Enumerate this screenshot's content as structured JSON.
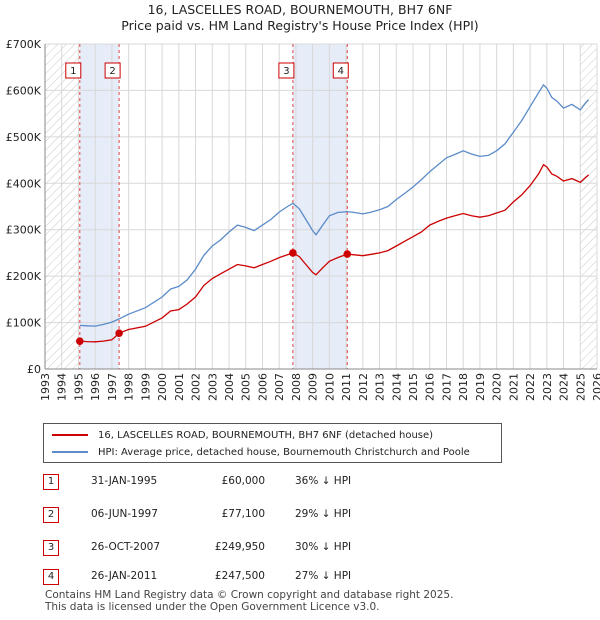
{
  "title_line1": "16, LASCELLES ROAD, BOURNEMOUTH, BH7 6NF",
  "title_line2": "Price paid vs. HM Land Registry's House Price Index (HPI)",
  "colors": {
    "price": "#cc0000",
    "hpi": "#5b8bc9",
    "shade": "#e6ecf8",
    "grid": "#d8d8d8"
  },
  "chart_data": {
    "type": "line",
    "xlim": [
      1993,
      2026
    ],
    "ylim": [
      0,
      700000
    ],
    "x_ticks": [
      1993,
      1994,
      1995,
      1996,
      1997,
      1998,
      1999,
      2000,
      2001,
      2002,
      2003,
      2004,
      2005,
      2006,
      2007,
      2008,
      2009,
      2010,
      2011,
      2012,
      2013,
      2014,
      2015,
      2016,
      2017,
      2018,
      2019,
      2020,
      2021,
      2022,
      2023,
      2024,
      2025,
      2026
    ],
    "y_ticks": [
      {
        "value": 0,
        "label": "£0"
      },
      {
        "value": 100000,
        "label": "£100K"
      },
      {
        "value": 200000,
        "label": "£200K"
      },
      {
        "value": 300000,
        "label": "£300K"
      },
      {
        "value": 400000,
        "label": "£400K"
      },
      {
        "value": 500000,
        "label": "£500K"
      },
      {
        "value": 600000,
        "label": "£600K"
      },
      {
        "value": 700000,
        "label": "£700K"
      }
    ],
    "hatched_before": 1995.0,
    "hatched_after": 2025.0,
    "shaded_ranges": [
      [
        1995.08,
        1997.43
      ],
      [
        2007.82,
        2011.07
      ]
    ],
    "series": [
      {
        "name": "16, LASCELLES ROAD, BOURNEMOUTH, BH7 6NF (detached house)",
        "color": "#cc0000",
        "points": [
          [
            1995.08,
            60000
          ],
          [
            1995.5,
            59000
          ],
          [
            1996.0,
            58500
          ],
          [
            1996.5,
            60000
          ],
          [
            1997.0,
            63000
          ],
          [
            1997.43,
            77100
          ],
          [
            1998.0,
            85000
          ],
          [
            1999.0,
            92000
          ],
          [
            2000.0,
            110000
          ],
          [
            2000.5,
            125000
          ],
          [
            2001.0,
            128000
          ],
          [
            2001.5,
            140000
          ],
          [
            2002.0,
            155000
          ],
          [
            2002.5,
            180000
          ],
          [
            2003.0,
            195000
          ],
          [
            2003.5,
            205000
          ],
          [
            2004.0,
            215000
          ],
          [
            2004.5,
            225000
          ],
          [
            2005.0,
            222000
          ],
          [
            2005.5,
            218000
          ],
          [
            2006.0,
            225000
          ],
          [
            2006.5,
            232000
          ],
          [
            2007.0,
            240000
          ],
          [
            2007.5,
            246000
          ],
          [
            2007.82,
            249950
          ],
          [
            2008.2,
            242000
          ],
          [
            2008.6,
            225000
          ],
          [
            2009.0,
            208000
          ],
          [
            2009.2,
            203000
          ],
          [
            2009.6,
            218000
          ],
          [
            2010.0,
            232000
          ],
          [
            2010.5,
            240000
          ],
          [
            2011.07,
            247500
          ],
          [
            2011.5,
            246000
          ],
          [
            2012.0,
            244000
          ],
          [
            2012.5,
            247000
          ],
          [
            2013.0,
            250000
          ],
          [
            2013.5,
            255000
          ],
          [
            2014.0,
            265000
          ],
          [
            2014.5,
            275000
          ],
          [
            2015.0,
            285000
          ],
          [
            2015.5,
            295000
          ],
          [
            2016.0,
            310000
          ],
          [
            2016.5,
            318000
          ],
          [
            2017.0,
            325000
          ],
          [
            2017.5,
            330000
          ],
          [
            2018.0,
            335000
          ],
          [
            2018.5,
            330000
          ],
          [
            2019.0,
            327000
          ],
          [
            2019.5,
            330000
          ],
          [
            2020.0,
            336000
          ],
          [
            2020.5,
            342000
          ],
          [
            2021.0,
            360000
          ],
          [
            2021.5,
            375000
          ],
          [
            2022.0,
            395000
          ],
          [
            2022.5,
            420000
          ],
          [
            2022.8,
            440000
          ],
          [
            2023.0,
            435000
          ],
          [
            2023.3,
            420000
          ],
          [
            2023.6,
            415000
          ],
          [
            2024.0,
            405000
          ],
          [
            2024.5,
            410000
          ],
          [
            2025.0,
            402000
          ],
          [
            2025.3,
            412000
          ],
          [
            2025.5,
            418000
          ]
        ]
      },
      {
        "name": "HPI: Average price, detached house, Bournemouth Christchurch and Poole",
        "color": "#5b8bc9",
        "points": [
          [
            1995.08,
            94000
          ],
          [
            1995.5,
            93000
          ],
          [
            1996.0,
            92500
          ],
          [
            1996.5,
            96000
          ],
          [
            1997.0,
            101000
          ],
          [
            1997.43,
            108000
          ],
          [
            1998.0,
            118000
          ],
          [
            1999.0,
            132000
          ],
          [
            2000.0,
            155000
          ],
          [
            2000.5,
            172000
          ],
          [
            2001.0,
            178000
          ],
          [
            2001.5,
            192000
          ],
          [
            2002.0,
            215000
          ],
          [
            2002.5,
            245000
          ],
          [
            2003.0,
            265000
          ],
          [
            2003.5,
            278000
          ],
          [
            2004.0,
            295000
          ],
          [
            2004.5,
            310000
          ],
          [
            2005.0,
            305000
          ],
          [
            2005.5,
            298000
          ],
          [
            2006.0,
            310000
          ],
          [
            2006.5,
            322000
          ],
          [
            2007.0,
            338000
          ],
          [
            2007.5,
            350000
          ],
          [
            2007.82,
            357000
          ],
          [
            2008.2,
            345000
          ],
          [
            2008.6,
            322000
          ],
          [
            2009.0,
            298000
          ],
          [
            2009.2,
            289000
          ],
          [
            2009.6,
            310000
          ],
          [
            2010.0,
            330000
          ],
          [
            2010.5,
            337000
          ],
          [
            2011.07,
            339000
          ],
          [
            2011.5,
            337000
          ],
          [
            2012.0,
            334000
          ],
          [
            2012.5,
            338000
          ],
          [
            2013.0,
            343000
          ],
          [
            2013.5,
            350000
          ],
          [
            2014.0,
            365000
          ],
          [
            2014.5,
            378000
          ],
          [
            2015.0,
            392000
          ],
          [
            2015.5,
            408000
          ],
          [
            2016.0,
            425000
          ],
          [
            2016.5,
            440000
          ],
          [
            2017.0,
            455000
          ],
          [
            2017.5,
            462000
          ],
          [
            2018.0,
            470000
          ],
          [
            2018.5,
            463000
          ],
          [
            2019.0,
            458000
          ],
          [
            2019.5,
            460000
          ],
          [
            2020.0,
            470000
          ],
          [
            2020.5,
            485000
          ],
          [
            2021.0,
            510000
          ],
          [
            2021.5,
            535000
          ],
          [
            2022.0,
            565000
          ],
          [
            2022.5,
            595000
          ],
          [
            2022.8,
            612000
          ],
          [
            2023.0,
            605000
          ],
          [
            2023.3,
            585000
          ],
          [
            2023.6,
            577000
          ],
          [
            2024.0,
            562000
          ],
          [
            2024.5,
            570000
          ],
          [
            2025.0,
            558000
          ],
          [
            2025.3,
            572000
          ],
          [
            2025.5,
            580000
          ]
        ]
      }
    ],
    "sales": [
      {
        "label": "1",
        "x": 1995.08,
        "y": 60000
      },
      {
        "label": "2",
        "x": 1997.43,
        "y": 77100
      },
      {
        "label": "3",
        "x": 2007.82,
        "y": 249950
      },
      {
        "label": "4",
        "x": 2011.07,
        "y": 247500
      }
    ]
  },
  "legend": {
    "price_label": "16, LASCELLES ROAD, BOURNEMOUTH, BH7 6NF (detached house)",
    "hpi_label": "HPI: Average price, detached house, Bournemouth Christchurch and Poole"
  },
  "transactions": [
    {
      "num": "1",
      "date": "31-JAN-1995",
      "price": "£60,000",
      "hpi": "36% ↓ HPI"
    },
    {
      "num": "2",
      "date": "06-JUN-1997",
      "price": "£77,100",
      "hpi": "29% ↓ HPI"
    },
    {
      "num": "3",
      "date": "26-OCT-2007",
      "price": "£249,950",
      "hpi": "30% ↓ HPI"
    },
    {
      "num": "4",
      "date": "26-JAN-2011",
      "price": "£247,500",
      "hpi": "27% ↓ HPI"
    }
  ],
  "footer": {
    "line1": "Contains HM Land Registry data © Crown copyright and database right 2025.",
    "line2": "This data is licensed under the Open Government Licence v3.0."
  }
}
